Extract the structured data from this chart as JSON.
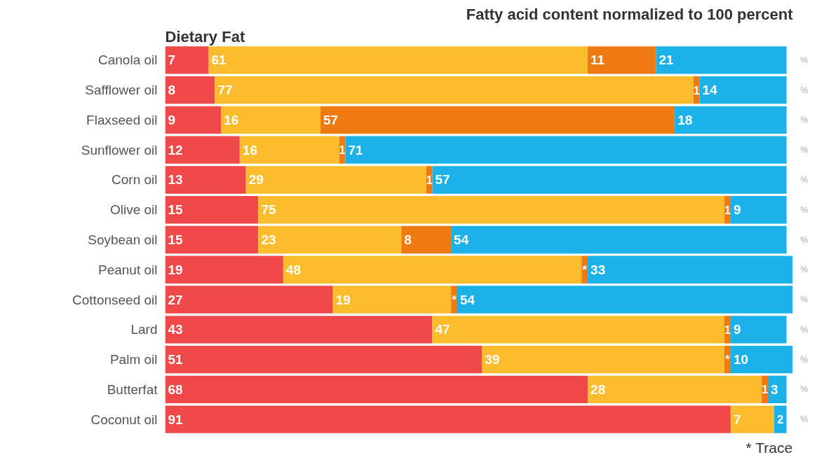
{
  "chart_data": {
    "type": "bar",
    "orientation": "horizontal",
    "stacked": true,
    "title": "Fatty acid content normalized to 100 percent",
    "ylabel": "Dietary Fat",
    "categories": [
      "Canola oil",
      "Safflower oil",
      "Flaxseed oil",
      "Sunflower oil",
      "Corn oil",
      "Olive oil",
      "Soybean oil",
      "Peanut oil",
      "Cottonseed oil",
      "Lard",
      "Palm oil",
      "Butterfat",
      "Coconut oil"
    ],
    "series": [
      {
        "color": "#f04848",
        "values": [
          7,
          8,
          9,
          12,
          13,
          15,
          15,
          19,
          27,
          43,
          51,
          68,
          91
        ]
      },
      {
        "color": "#fbbd2c",
        "values": [
          61,
          77,
          16,
          16,
          29,
          75,
          23,
          48,
          19,
          47,
          39,
          28,
          7
        ]
      },
      {
        "color": "#f07a12",
        "values": [
          11,
          1,
          57,
          1,
          1,
          1,
          8,
          1,
          1,
          1,
          1,
          1,
          null
        ],
        "value_labels": [
          "11",
          "1",
          "57",
          "1",
          "1",
          "1",
          "8",
          "*",
          "*",
          "1",
          "*",
          "1",
          null
        ]
      },
      {
        "color": "#1ab2e8",
        "values": [
          21,
          14,
          18,
          71,
          57,
          9,
          54,
          33,
          54,
          9,
          10,
          3,
          2
        ]
      }
    ],
    "xlim": [
      0,
      101
    ],
    "data_labels": true,
    "tick_labels": "y",
    "grid": false,
    "annotations": [
      "%",
      "* Trace"
    ]
  }
}
